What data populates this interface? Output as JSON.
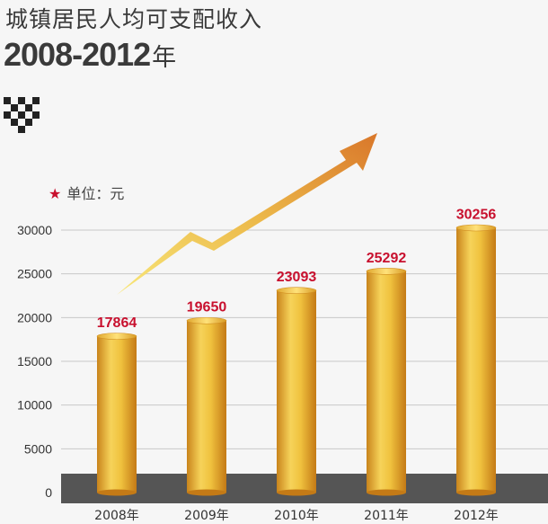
{
  "header": {
    "title_line1": "城镇居民人均可支配收入",
    "title_line2": "2008-2012",
    "title_line2_suffix": "年"
  },
  "unit": {
    "star": "★",
    "label": "单位：元"
  },
  "colors": {
    "bar_gold": "#e8b830",
    "bar_dark": "#c9841c",
    "value_label": "#c8102e",
    "base_band": "#555555",
    "arrow": "#e08a2e"
  },
  "chart_data": {
    "type": "bar",
    "title": "城镇居民人均可支配收入",
    "subtitle": "2008-2012年",
    "unit": "单位：元",
    "categories": [
      "2008年",
      "2009年",
      "2010年",
      "2011年",
      "2012年"
    ],
    "values": [
      17864,
      19650,
      23093,
      25292,
      30256
    ],
    "data_labels": [
      "17864",
      "19650",
      "23093",
      "25292",
      "30256"
    ],
    "yticks": [
      0,
      5000,
      10000,
      15000,
      20000,
      25000,
      30000
    ],
    "ylim": [
      0,
      30000
    ],
    "grid": true
  }
}
